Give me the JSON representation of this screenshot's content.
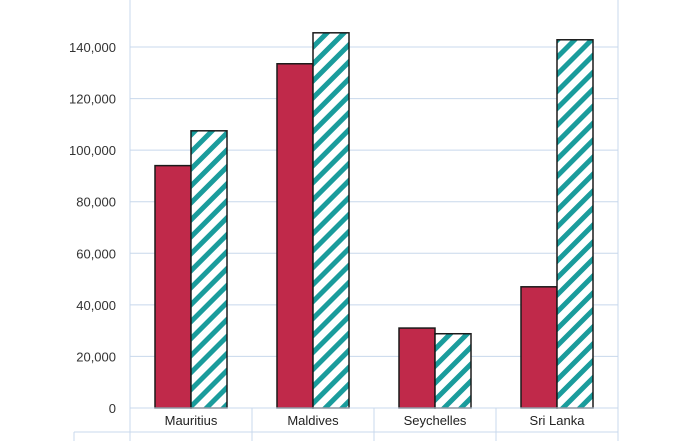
{
  "chart_data": {
    "type": "bar",
    "categories": [
      "Mauritius",
      "Maldives",
      "Seychelles",
      "Sri Lanka"
    ],
    "series": [
      {
        "values": [
          94000,
          133500,
          31000,
          47000
        ],
        "color": "#c0294a",
        "pattern": "solid"
      },
      {
        "values": [
          107500,
          145500,
          28800,
          142800
        ],
        "color": "#1a9c9c",
        "pattern": "diagonal-stripe"
      }
    ],
    "ylim": [
      0,
      160000
    ],
    "yticks": [
      0,
      20000,
      40000,
      60000,
      80000,
      100000,
      120000,
      140000
    ],
    "ytick_labels": [
      "0",
      "20,000",
      "40,000",
      "60,000",
      "80,000",
      "100,000",
      "120,000",
      "140,000"
    ],
    "grid": true
  }
}
